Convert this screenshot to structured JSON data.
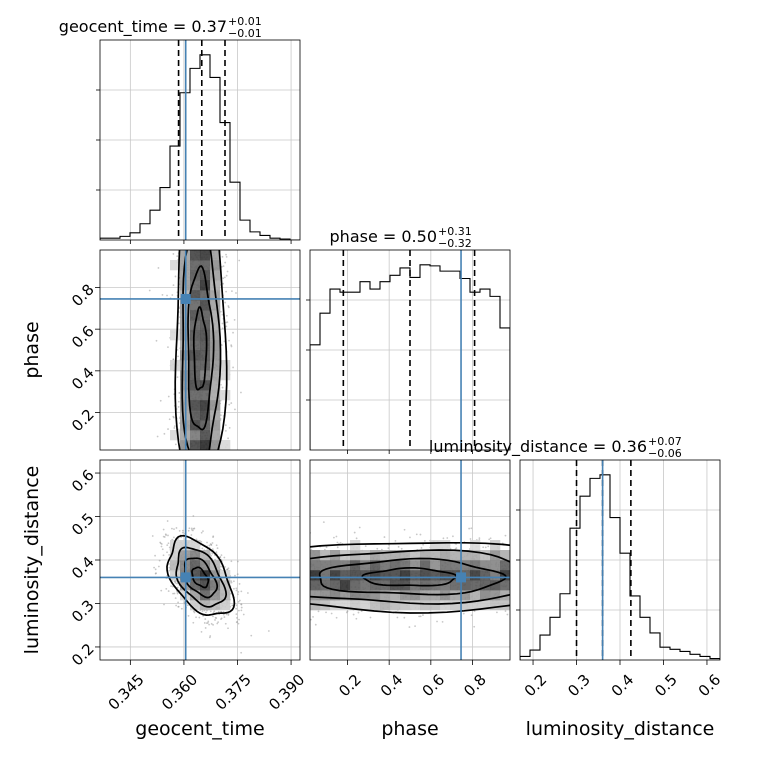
{
  "chart_data": {
    "type": "corner",
    "parameters": [
      "geocent_time",
      "phase",
      "luminosity_distance"
    ],
    "axis_labels": {
      "geocent_time": "geocent_time",
      "phase": "phase",
      "luminosity_distance": "luminosity_distance"
    },
    "ranges": {
      "geocent_time": [
        0.3365,
        0.3925
      ],
      "phase": [
        0.02,
        0.98
      ],
      "luminosity_distance": [
        0.17,
        0.63
      ]
    },
    "ticks": {
      "geocent_time": [
        "0.345",
        "0.360",
        "0.375",
        "0.390"
      ],
      "phase": [
        "0.2",
        "0.4",
        "0.6",
        "0.8"
      ],
      "luminosity_distance": [
        "0.2",
        "0.3",
        "0.4",
        "0.5",
        "0.6"
      ]
    },
    "truths": {
      "geocent_time": 0.3605,
      "phase": 0.745,
      "luminosity_distance": 0.36
    },
    "truth_color": "#4682b4",
    "titles": [
      {
        "parameter": "geocent_time",
        "text": "geocent_time = 0.37",
        "plus": "+0.01",
        "minus": "−0.01"
      },
      {
        "parameter": "phase",
        "text": "phase = 0.50",
        "plus": "+0.31",
        "minus": "−0.32"
      },
      {
        "parameter": "luminosity_distance",
        "text": "luminosity_distance = 0.36",
        "plus": "+0.07",
        "minus": "−0.06"
      }
    ],
    "quantiles": {
      "geocent_time": [
        0.3585,
        0.365,
        0.3715
      ],
      "phase": [
        0.18,
        0.5,
        0.81
      ],
      "luminosity_distance": [
        0.3,
        0.36,
        0.425
      ]
    },
    "histograms": {
      "geocent_time": {
        "bin_edges": [
          0.3365,
          0.3393,
          0.3421,
          0.3449,
          0.3477,
          0.3505,
          0.3533,
          0.3561,
          0.3589,
          0.3617,
          0.3645,
          0.3673,
          0.3701,
          0.3729,
          0.3757,
          0.3785,
          0.3813,
          0.3841,
          0.3869,
          0.3897,
          0.3925
        ],
        "counts": [
          2,
          2,
          4,
          8,
          18,
          33,
          58,
          104,
          163,
          190,
          205,
          180,
          130,
          64,
          22,
          9,
          5,
          2,
          1,
          0
        ]
      },
      "phase": {
        "bin_edges": [
          0.02,
          0.068,
          0.116,
          0.164,
          0.212,
          0.26,
          0.308,
          0.356,
          0.404,
          0.452,
          0.5,
          0.548,
          0.596,
          0.644,
          0.692,
          0.74,
          0.788,
          0.836,
          0.884,
          0.932,
          0.98
        ],
        "counts": [
          100,
          130,
          153,
          150,
          150,
          160,
          153,
          160,
          166,
          173,
          164,
          176,
          175,
          170,
          170,
          163,
          150,
          153,
          146,
          116
        ]
      },
      "luminosity_distance": {
        "bin_edges": [
          0.17,
          0.193,
          0.216,
          0.239,
          0.262,
          0.285,
          0.308,
          0.331,
          0.354,
          0.377,
          0.4,
          0.423,
          0.446,
          0.469,
          0.492,
          0.515,
          0.538,
          0.561,
          0.584,
          0.607,
          0.63
        ],
        "counts": [
          5,
          14,
          35,
          60,
          93,
          185,
          230,
          255,
          260,
          200,
          150,
          90,
          60,
          38,
          18,
          15,
          12,
          8,
          5,
          2
        ]
      }
    },
    "contours_2d": {
      "phase_vs_geocent_time": {
        "center": [
          0.3645,
          0.5
        ],
        "sigma": [
          0.0035,
          0.27
        ],
        "corr": 0.0
      },
      "luminosity_distance_vs_geocent_time": {
        "center": [
          0.3645,
          0.36
        ],
        "sigma": [
          0.0045,
          0.045
        ],
        "corr": -0.45
      },
      "luminosity_distance_vs_phase": {
        "center": [
          0.5,
          0.36
        ],
        "sigma": [
          0.27,
          0.04
        ],
        "corr": 0.0
      }
    },
    "grid": true
  }
}
